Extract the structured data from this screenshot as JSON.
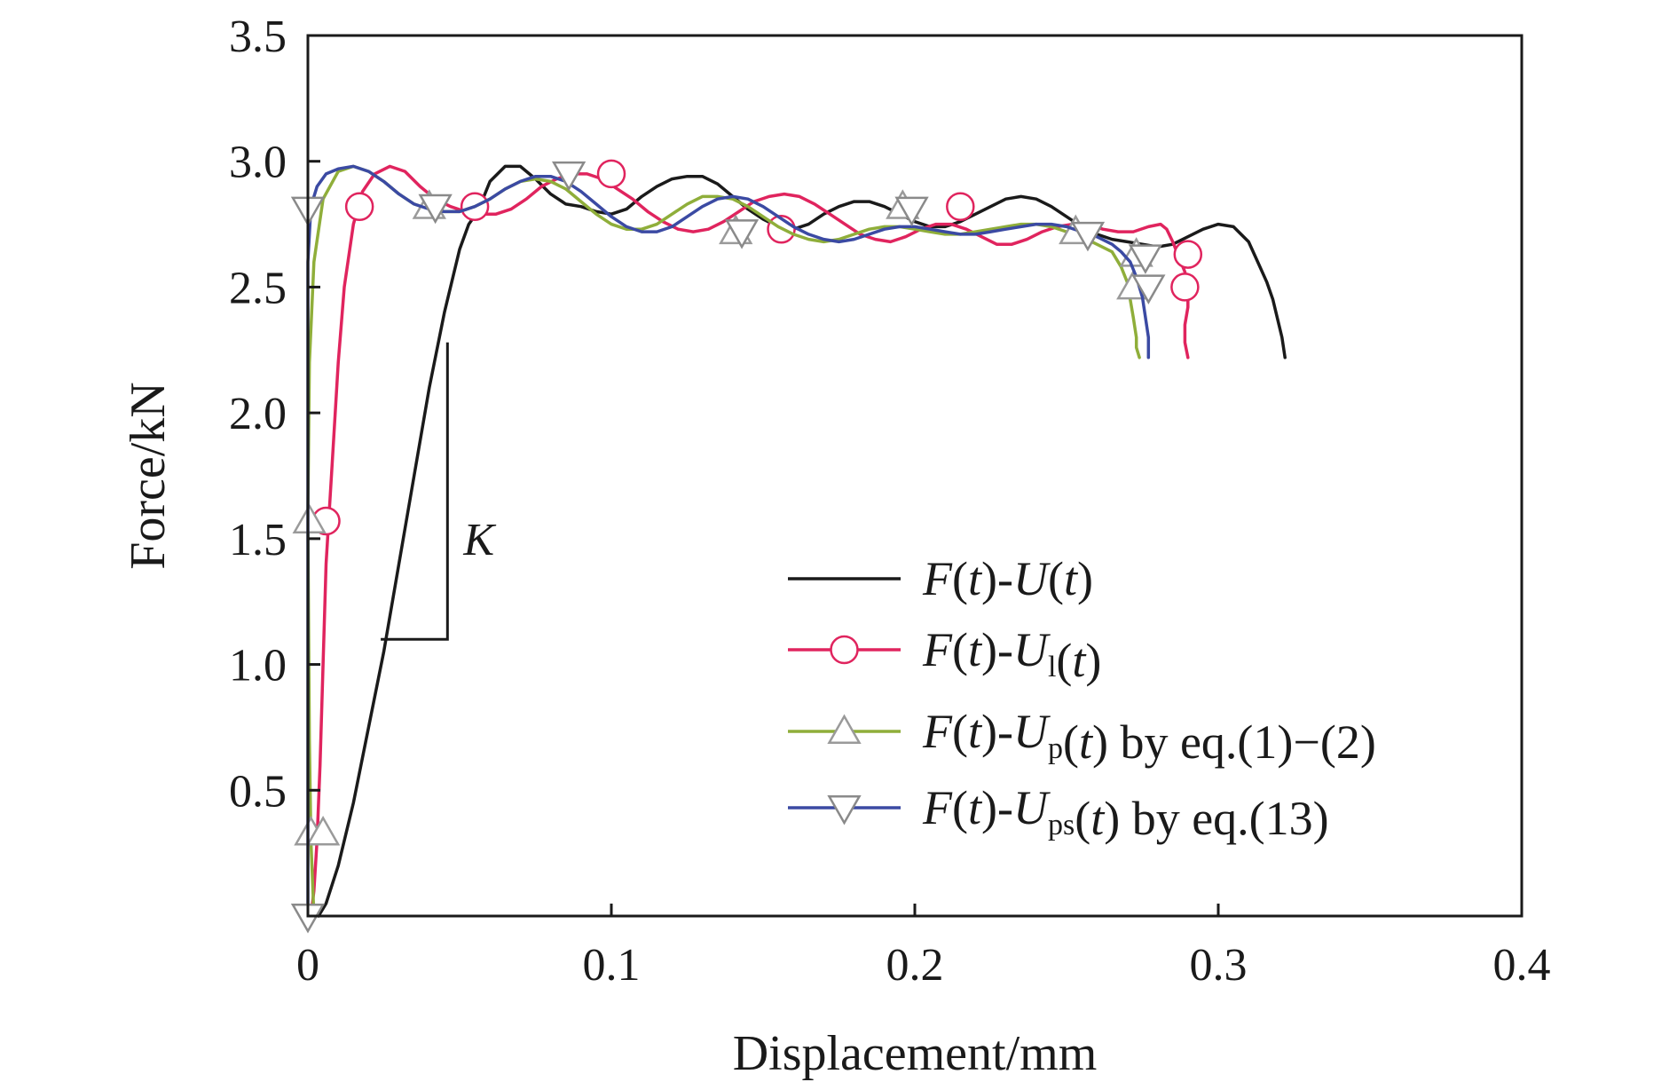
{
  "chart_data": {
    "type": "line",
    "xlabel": "Displacement/mm",
    "ylabel": "Force/kN",
    "xlim": [
      0,
      0.4
    ],
    "ylim": [
      0,
      3.5
    ],
    "x_ticks": [
      "0",
      "0.1",
      "0.2",
      "0.3",
      "0.4"
    ],
    "x_tick_values": [
      0,
      0.1,
      0.2,
      0.3,
      0.4
    ],
    "y_ticks": [
      "0.5",
      "1.0",
      "1.5",
      "2.0",
      "2.5",
      "3.0",
      "3.5"
    ],
    "y_tick_values": [
      0.5,
      1.0,
      1.5,
      2.0,
      2.5,
      3.0,
      3.5
    ],
    "grid": false,
    "legend_position": "bottom-right",
    "annotation": {
      "label": "K",
      "slope_triangle": {
        "x1": 0.024,
        "x2": 0.046,
        "y1": 1.1,
        "y2": 2.28
      }
    },
    "series": [
      {
        "name": "F(t)-U(t)",
        "legend": {
          "pre1": "F",
          "p1": "(",
          "t1": "t",
          "p2": ")-",
          "u": "U",
          "sub": "",
          "p3": "(",
          "t2": "t",
          "p4": ")",
          "suffix": ""
        },
        "color": "#1a1a1a",
        "marker": "none",
        "x": [
          0.0035,
          0.006,
          0.01,
          0.015,
          0.02,
          0.025,
          0.03,
          0.035,
          0.04,
          0.045,
          0.05,
          0.053,
          0.056,
          0.06,
          0.065,
          0.07,
          0.075,
          0.08,
          0.085,
          0.09,
          0.095,
          0.1,
          0.105,
          0.11,
          0.115,
          0.12,
          0.125,
          0.13,
          0.135,
          0.14,
          0.145,
          0.15,
          0.155,
          0.16,
          0.165,
          0.17,
          0.175,
          0.18,
          0.185,
          0.19,
          0.195,
          0.2,
          0.205,
          0.21,
          0.215,
          0.22,
          0.225,
          0.23,
          0.235,
          0.24,
          0.245,
          0.25,
          0.255,
          0.26,
          0.265,
          0.27,
          0.275,
          0.28,
          0.285,
          0.29,
          0.295,
          0.3,
          0.305,
          0.31,
          0.313,
          0.316,
          0.318,
          0.319,
          0.321,
          0.322
        ],
        "y": [
          0.0,
          0.05,
          0.2,
          0.45,
          0.75,
          1.05,
          1.4,
          1.75,
          2.1,
          2.4,
          2.65,
          2.75,
          2.8,
          2.92,
          2.98,
          2.98,
          2.93,
          2.87,
          2.83,
          2.82,
          2.8,
          2.79,
          2.81,
          2.86,
          2.9,
          2.93,
          2.94,
          2.94,
          2.91,
          2.86,
          2.81,
          2.77,
          2.74,
          2.73,
          2.75,
          2.79,
          2.82,
          2.84,
          2.84,
          2.82,
          2.79,
          2.76,
          2.74,
          2.74,
          2.76,
          2.79,
          2.82,
          2.85,
          2.86,
          2.85,
          2.82,
          2.78,
          2.74,
          2.71,
          2.69,
          2.68,
          2.67,
          2.66,
          2.67,
          2.7,
          2.73,
          2.75,
          2.74,
          2.68,
          2.6,
          2.52,
          2.45,
          2.4,
          2.3,
          2.22
        ]
      },
      {
        "name": "F(t)-Ul(t)",
        "legend": {
          "pre1": "F",
          "p1": "(",
          "t1": "t",
          "p2": ")-",
          "u": "U",
          "sub": "l",
          "p3": "(",
          "t2": "t",
          "p4": ")",
          "suffix": ""
        },
        "color": "#e0245e",
        "marker": "circle",
        "x": [
          0.001,
          0.002,
          0.003,
          0.004,
          0.005,
          0.006,
          0.008,
          0.01,
          0.012,
          0.015,
          0.018,
          0.022,
          0.027,
          0.032,
          0.037,
          0.042,
          0.047,
          0.052,
          0.057,
          0.062,
          0.067,
          0.072,
          0.077,
          0.082,
          0.087,
          0.092,
          0.097,
          0.102,
          0.107,
          0.112,
          0.117,
          0.122,
          0.127,
          0.132,
          0.137,
          0.142,
          0.147,
          0.152,
          0.157,
          0.162,
          0.167,
          0.172,
          0.177,
          0.182,
          0.187,
          0.192,
          0.197,
          0.202,
          0.207,
          0.212,
          0.217,
          0.222,
          0.227,
          0.232,
          0.237,
          0.242,
          0.247,
          0.252,
          0.257,
          0.262,
          0.267,
          0.272,
          0.277,
          0.281,
          0.283,
          0.285,
          0.287,
          0.289,
          0.29,
          0.29,
          0.289,
          0.289,
          0.29
        ],
        "y": [
          0.0,
          0.1,
          0.3,
          0.6,
          1.0,
          1.4,
          1.8,
          2.2,
          2.5,
          2.75,
          2.88,
          2.95,
          2.98,
          2.96,
          2.9,
          2.85,
          2.82,
          2.8,
          2.79,
          2.79,
          2.81,
          2.85,
          2.9,
          2.93,
          2.95,
          2.95,
          2.93,
          2.89,
          2.85,
          2.8,
          2.76,
          2.73,
          2.72,
          2.73,
          2.76,
          2.8,
          2.84,
          2.86,
          2.87,
          2.86,
          2.83,
          2.79,
          2.75,
          2.71,
          2.69,
          2.68,
          2.7,
          2.73,
          2.75,
          2.75,
          2.73,
          2.7,
          2.67,
          2.67,
          2.69,
          2.72,
          2.74,
          2.75,
          2.75,
          2.73,
          2.72,
          2.72,
          2.74,
          2.75,
          2.73,
          2.68,
          2.62,
          2.56,
          2.5,
          2.42,
          2.35,
          2.28,
          2.22
        ],
        "markers_x": [
          0.006,
          0.017,
          0.055,
          0.1,
          0.156,
          0.215,
          0.29,
          0.289
        ],
        "markers_y": [
          1.57,
          2.82,
          2.82,
          2.95,
          2.73,
          2.82,
          2.63,
          2.5
        ]
      },
      {
        "name": "F(t)-Up(t) by eq.(1)−(2)",
        "legend": {
          "pre1": "F",
          "p1": "(",
          "t1": "t",
          "p2": ")-",
          "u": "U",
          "sub": "p",
          "p3": "(",
          "t2": "t",
          "p4": ")",
          "suffix": " by eq.(1)−(2)"
        },
        "color": "#8fae3a",
        "marker": "triangle-up",
        "x": [
          0.002,
          0.001,
          0.0005,
          0.0002,
          0.0,
          0.0005,
          0.002,
          0.005,
          0.01,
          0.015,
          0.02,
          0.025,
          0.03,
          0.035,
          0.04,
          0.045,
          0.05,
          0.055,
          0.06,
          0.065,
          0.07,
          0.075,
          0.08,
          0.085,
          0.09,
          0.095,
          0.1,
          0.105,
          0.11,
          0.115,
          0.12,
          0.125,
          0.13,
          0.135,
          0.14,
          0.145,
          0.15,
          0.155,
          0.16,
          0.165,
          0.17,
          0.175,
          0.18,
          0.185,
          0.19,
          0.195,
          0.2,
          0.205,
          0.21,
          0.215,
          0.22,
          0.225,
          0.23,
          0.235,
          0.24,
          0.245,
          0.25,
          0.255,
          0.26,
          0.265,
          0.268,
          0.27,
          0.271,
          0.272,
          0.273,
          0.273,
          0.274
        ],
        "y": [
          0.0,
          0.3,
          0.7,
          1.2,
          1.6,
          2.2,
          2.6,
          2.85,
          2.96,
          2.98,
          2.96,
          2.92,
          2.87,
          2.83,
          2.81,
          2.8,
          2.8,
          2.82,
          2.85,
          2.89,
          2.92,
          2.93,
          2.92,
          2.89,
          2.84,
          2.79,
          2.75,
          2.73,
          2.73,
          2.75,
          2.79,
          2.83,
          2.86,
          2.86,
          2.85,
          2.82,
          2.78,
          2.74,
          2.71,
          2.69,
          2.68,
          2.69,
          2.71,
          2.73,
          2.74,
          2.74,
          2.73,
          2.72,
          2.71,
          2.71,
          2.72,
          2.73,
          2.74,
          2.75,
          2.75,
          2.74,
          2.72,
          2.7,
          2.67,
          2.64,
          2.58,
          2.52,
          2.45,
          2.38,
          2.3,
          2.26,
          2.22
        ],
        "markers_x": [
          0.001,
          0.005,
          0.0005,
          0.04,
          0.141,
          0.196,
          0.253,
          0.273,
          0.272
        ],
        "markers_y": [
          0.33,
          0.33,
          1.57,
          2.82,
          2.72,
          2.82,
          2.72,
          2.63,
          2.5
        ]
      },
      {
        "name": "F(t)-Ups(t) by eq.(13)",
        "legend": {
          "pre1": "F",
          "p1": "(",
          "t1": "t",
          "p2": ")-",
          "u": "U",
          "sub": "ps",
          "p3": "(",
          "t2": "t",
          "p4": ")",
          "suffix": " by eq.(13)"
        },
        "color": "#3b4aa3",
        "marker": "triangle-down",
        "x": [
          0.0,
          0.0,
          0.001,
          0.003,
          0.006,
          0.01,
          0.015,
          0.02,
          0.025,
          0.03,
          0.035,
          0.04,
          0.045,
          0.05,
          0.055,
          0.06,
          0.065,
          0.07,
          0.075,
          0.08,
          0.085,
          0.09,
          0.095,
          0.1,
          0.105,
          0.11,
          0.115,
          0.12,
          0.125,
          0.13,
          0.135,
          0.14,
          0.145,
          0.15,
          0.155,
          0.16,
          0.165,
          0.17,
          0.175,
          0.18,
          0.185,
          0.19,
          0.195,
          0.2,
          0.205,
          0.21,
          0.215,
          0.22,
          0.225,
          0.23,
          0.235,
          0.24,
          0.245,
          0.25,
          0.255,
          0.26,
          0.265,
          0.268,
          0.271,
          0.273,
          0.275,
          0.276,
          0.277,
          0.277
        ],
        "y": [
          0.0,
          2.6,
          2.82,
          2.9,
          2.95,
          2.97,
          2.98,
          2.96,
          2.92,
          2.87,
          2.83,
          2.81,
          2.8,
          2.8,
          2.82,
          2.85,
          2.89,
          2.92,
          2.94,
          2.94,
          2.92,
          2.88,
          2.83,
          2.78,
          2.74,
          2.72,
          2.72,
          2.74,
          2.78,
          2.82,
          2.85,
          2.86,
          2.85,
          2.82,
          2.78,
          2.74,
          2.71,
          2.69,
          2.68,
          2.69,
          2.71,
          2.73,
          2.74,
          2.74,
          2.73,
          2.72,
          2.71,
          2.71,
          2.72,
          2.73,
          2.74,
          2.75,
          2.75,
          2.74,
          2.72,
          2.7,
          2.67,
          2.64,
          2.6,
          2.54,
          2.46,
          2.38,
          2.3,
          2.22
        ],
        "markers_x": [
          0.0,
          0.0,
          0.042,
          0.086,
          0.143,
          0.199,
          0.257,
          0.276,
          0.277
        ],
        "markers_y": [
          0.0,
          2.81,
          2.82,
          2.95,
          2.72,
          2.81,
          2.71,
          2.62,
          2.5
        ]
      }
    ]
  }
}
